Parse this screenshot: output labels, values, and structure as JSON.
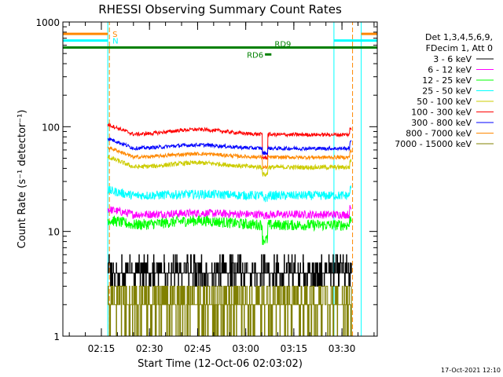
{
  "chart_data": {
    "type": "line",
    "title": "RHESSI Observing Summary Count Rates",
    "xlabel": "Start Time (12-Oct-06 02:03:02)",
    "ylabel": "Count Rate (s⁻¹ detector⁻¹)",
    "yscale": "log",
    "ylim": [
      1,
      1000
    ],
    "xlim_minutes_after_0203": [
      0,
      98
    ],
    "y_ticks": [
      {
        "value": 1,
        "label": "1"
      },
      {
        "value": 10,
        "label": "10"
      },
      {
        "value": 100,
        "label": "100"
      },
      {
        "value": 1000,
        "label": "1000"
      }
    ],
    "x_ticks": [
      {
        "minute": 12,
        "label": "02:15"
      },
      {
        "minute": 27,
        "label": "02:30"
      },
      {
        "minute": 42,
        "label": "02:45"
      },
      {
        "minute": 57,
        "label": "03:00"
      },
      {
        "minute": 72,
        "label": "03:15"
      },
      {
        "minute": 87,
        "label": "03:30"
      }
    ],
    "legend": {
      "header1": "Det 1,3,4,5,6,9,",
      "header2": "FDecim 1, Att 0",
      "placement": "right"
    },
    "series": [
      {
        "name": "3 - 6 keV",
        "color": "#000000",
        "base": 4.2,
        "noise": 0.35,
        "step": true,
        "dip": 0,
        "bump": 0
      },
      {
        "name": "6 - 12 keV",
        "color": "#ff00ff",
        "base": 14.5,
        "noise": 0.09,
        "step": false,
        "dip": 0.02,
        "bump": 0.03
      },
      {
        "name": "12 - 25 keV",
        "color": "#00ff00",
        "base": 11.5,
        "noise": 0.12,
        "step": false,
        "dip": 0.28,
        "bump": 0.1
      },
      {
        "name": "25 - 50 keV",
        "color": "#00ffff",
        "base": 22,
        "noise": 0.1,
        "step": false,
        "dip": 0.05,
        "bump": 0.03
      },
      {
        "name": "50 - 100 keV",
        "color": "#cccc00",
        "base": 41,
        "noise": 0.05,
        "step": false,
        "dip": 0.15,
        "bump": 0.1
      },
      {
        "name": "100 - 300 keV",
        "color": "#ff0000",
        "base": 84,
        "noise": 0.04,
        "step": false,
        "dip": 0.4,
        "bump": 0.12
      },
      {
        "name": "300 - 800 keV",
        "color": "#0000ff",
        "base": 62,
        "noise": 0.04,
        "step": false,
        "dip": 0.1,
        "bump": 0.08
      },
      {
        "name": "800 - 7000 keV",
        "color": "#ff8800",
        "base": 51,
        "noise": 0.04,
        "step": false,
        "dip": 0.2,
        "bump": 0.08
      },
      {
        "name": "7000 - 15000 keV",
        "color": "#808000",
        "base": 2.3,
        "noise": 0.3,
        "step": true,
        "dip": 0,
        "bump": 0
      }
    ],
    "data_window_minutes": [
      14,
      90
    ],
    "dip_minute": 63,
    "bars": [
      {
        "label": "S",
        "color": "#ff8800",
        "y": 770
      },
      {
        "label": "N",
        "color": "#00ffff",
        "y": 665
      },
      {
        "label": "RD9",
        "color": "#008000",
        "y": 570
      },
      {
        "label": "RD6",
        "color": "#008000",
        "y": 490
      }
    ],
    "vertical_markers": [
      {
        "minute": 0,
        "color": "#00ffff"
      },
      {
        "minute": 14,
        "color": "#00ffff"
      },
      {
        "minute": 14.5,
        "color": "#ff8800"
      },
      {
        "minute": 84.5,
        "color": "#00ffff"
      },
      {
        "minute": 90.3,
        "color": "#ff8800"
      },
      {
        "minute": 93,
        "color": "#00ffff"
      }
    ],
    "footer_timestamp": "17-Oct-2021 12:10"
  }
}
